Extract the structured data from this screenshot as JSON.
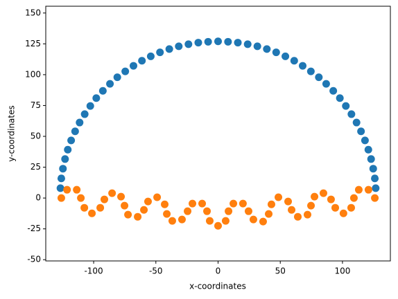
{
  "chart_data": {
    "type": "scatter",
    "x_label": "x-coordinates",
    "y_label": "y-coordinates",
    "xlim": [
      -138.5,
      138.5
    ],
    "ylim": [
      -51,
      155.5
    ],
    "xticks": [
      -100,
      -50,
      0,
      50,
      100
    ],
    "yticks": [
      -50,
      -25,
      0,
      25,
      50,
      75,
      100,
      125,
      150
    ],
    "series": [
      {
        "color": "#1f77b4",
        "x": [
          -126.7,
          -126.0,
          -124.7,
          -123.0,
          -120.8,
          -118.1,
          -114.9,
          -111.3,
          -107.2,
          -102.7,
          -97.9,
          -92.6,
          -86.9,
          -81.0,
          -74.6,
          -68.0,
          -61.2,
          -54.1,
          -46.7,
          -39.2,
          -31.6,
          -23.8,
          -15.9,
          -8.0,
          0,
          8.0,
          15.9,
          23.8,
          31.6,
          39.2,
          46.7,
          54.1,
          61.2,
          68.0,
          74.6,
          81.0,
          86.9,
          92.6,
          97.9,
          102.7,
          107.2,
          111.3,
          114.9,
          118.1,
          120.8,
          123.0,
          124.7,
          126.0,
          126.7
        ],
        "values": [
          8.0,
          15.9,
          23.8,
          31.6,
          39.2,
          46.7,
          54.1,
          61.2,
          68.0,
          74.6,
          81.0,
          86.9,
          92.6,
          97.9,
          102.7,
          107.2,
          111.3,
          114.9,
          118.1,
          120.8,
          123.0,
          124.7,
          126.0,
          126.7,
          127,
          126.7,
          126.0,
          124.7,
          123.0,
          120.8,
          118.1,
          114.9,
          111.3,
          107.2,
          102.7,
          97.9,
          92.6,
          86.9,
          81.0,
          74.6,
          68.0,
          61.2,
          54.1,
          46.7,
          39.2,
          31.6,
          23.8,
          15.9,
          8.0
        ]
      },
      {
        "color": "#ff7f0e",
        "x": [
          -126,
          -121.4,
          -113.6,
          -110.3,
          -107.5,
          -101.4,
          -94.7,
          -91.4,
          -85.2,
          -78,
          -75.2,
          -72.4,
          -64.6,
          -59.6,
          -56.3,
          -49,
          -42.9,
          -41.2,
          -36.8,
          -29,
          -24.5,
          -20.6,
          -12.8,
          -8.9,
          -6.7,
          0,
          6.1,
          8.4,
          12.3,
          20,
          24.5,
          28.4,
          36.2,
          40.7,
          42.9,
          48.5,
          56.3,
          59.1,
          64.1,
          71.9,
          74.7,
          77.5,
          84.7,
          90.8,
          94.2,
          100.8,
          107,
          109.2,
          113.1,
          120.9,
          126
        ],
        "values": [
          0,
          6.7,
          6.7,
          0,
          -7.9,
          -12.4,
          -7.9,
          -1.1,
          3.9,
          1.1,
          -6.2,
          -13.5,
          -15.2,
          -9.6,
          -2.8,
          0.6,
          -5.1,
          -12.9,
          -18.5,
          -17.4,
          -10.7,
          -4.5,
          -4.5,
          -10.7,
          -18.5,
          -22.5,
          -18.5,
          -10.7,
          -4.5,
          -4.5,
          -10.7,
          -17.4,
          -19.1,
          -12.9,
          -5.1,
          0.6,
          -2.8,
          -9.6,
          -15.2,
          -13.5,
          -6.2,
          1.1,
          3.9,
          -1.1,
          -7.9,
          -12.4,
          -7.9,
          0,
          6.7,
          6.7,
          0
        ]
      }
    ]
  }
}
